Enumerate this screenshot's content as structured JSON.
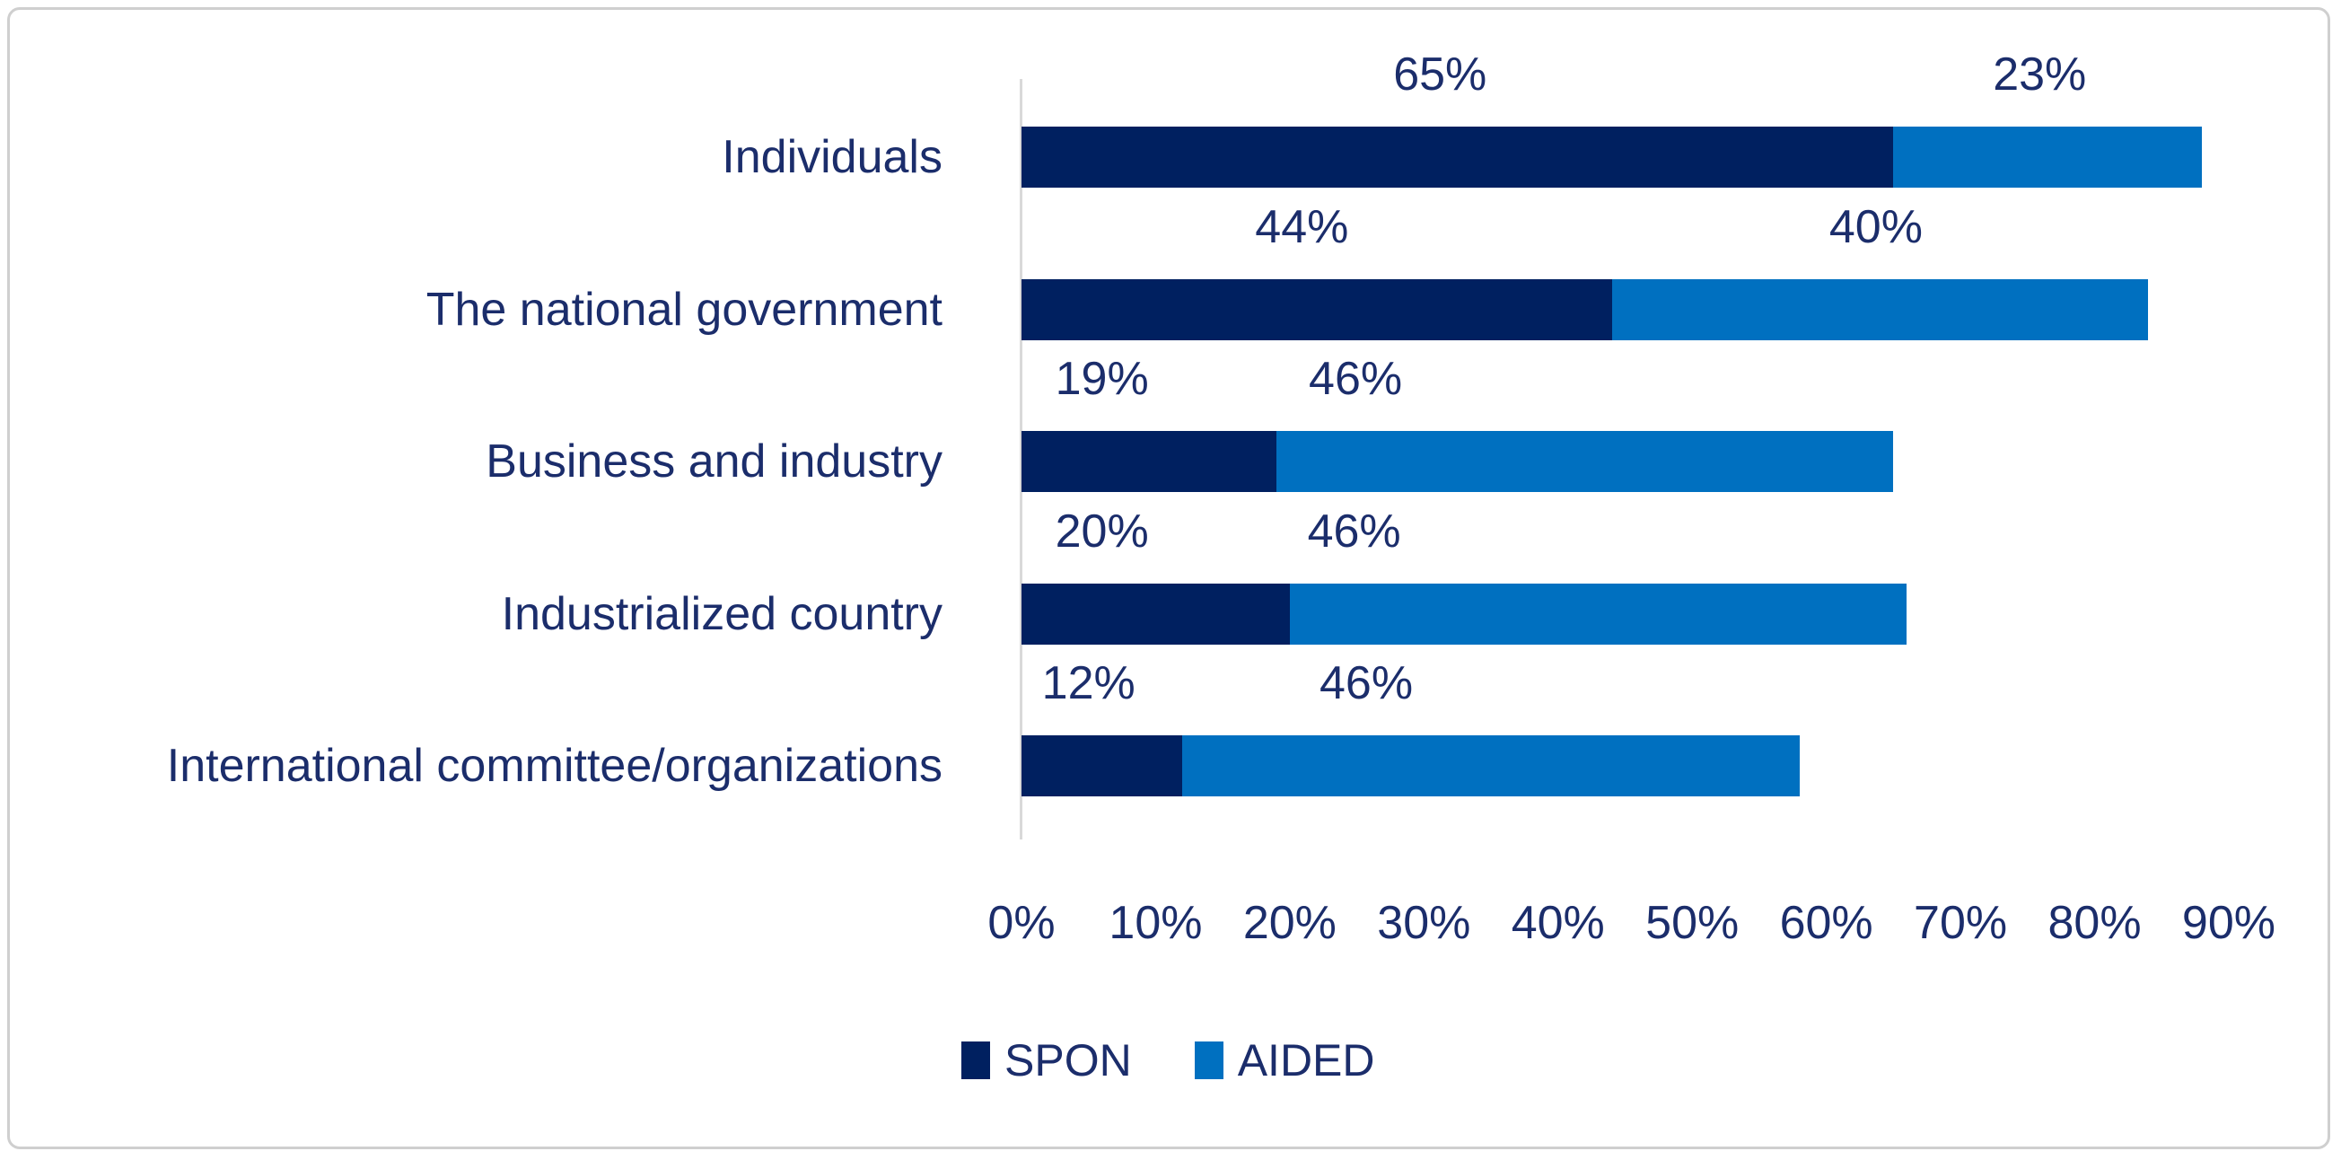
{
  "chart_data": {
    "type": "bar",
    "orientation": "horizontal",
    "stacked": true,
    "title": "",
    "xlabel": "",
    "ylabel": "",
    "grid": false,
    "legend_position": "bottom",
    "categories": [
      "Individuals",
      "The national government",
      "Business and industry",
      "Industrialized country",
      "International committee/organizations"
    ],
    "series": [
      {
        "name": "SPON",
        "color": "#002060",
        "values": [
          65,
          44,
          19,
          20,
          12
        ]
      },
      {
        "name": "AIDED",
        "color": "#0070C0",
        "values": [
          23,
          40,
          46,
          46,
          46
        ]
      }
    ],
    "data_labels": [
      [
        {
          "text": "65%",
          "x_pct": 31.2
        },
        {
          "text": "23%",
          "x_pct": 75.9
        }
      ],
      [
        {
          "text": "44%",
          "x_pct": 20.9
        },
        {
          "text": "40%",
          "x_pct": 63.7
        }
      ],
      [
        {
          "text": "19%",
          "x_pct": 6.0
        },
        {
          "text": "46%",
          "x_pct": 24.9
        }
      ],
      [
        {
          "text": "20%",
          "x_pct": 6.0
        },
        {
          "text": "46%",
          "x_pct": 24.8
        }
      ],
      [
        {
          "text": "12%",
          "x_pct": 5.0
        },
        {
          "text": "46%",
          "x_pct": 25.7
        }
      ]
    ],
    "x_axis": {
      "min": 0,
      "max": 90,
      "tick_step": 10,
      "tick_labels": [
        "0%",
        "10%",
        "20%",
        "30%",
        "40%",
        "50%",
        "60%",
        "70%",
        "80%",
        "90%"
      ]
    },
    "legend": [
      {
        "label": "SPON",
        "color": "#002060"
      },
      {
        "label": "AIDED",
        "color": "#0070C0"
      }
    ],
    "colors": {
      "text": "#1b2d6b",
      "axis_line": "#d9d9d9",
      "frame_border": "#cfcfcf",
      "background": "#ffffff"
    }
  }
}
